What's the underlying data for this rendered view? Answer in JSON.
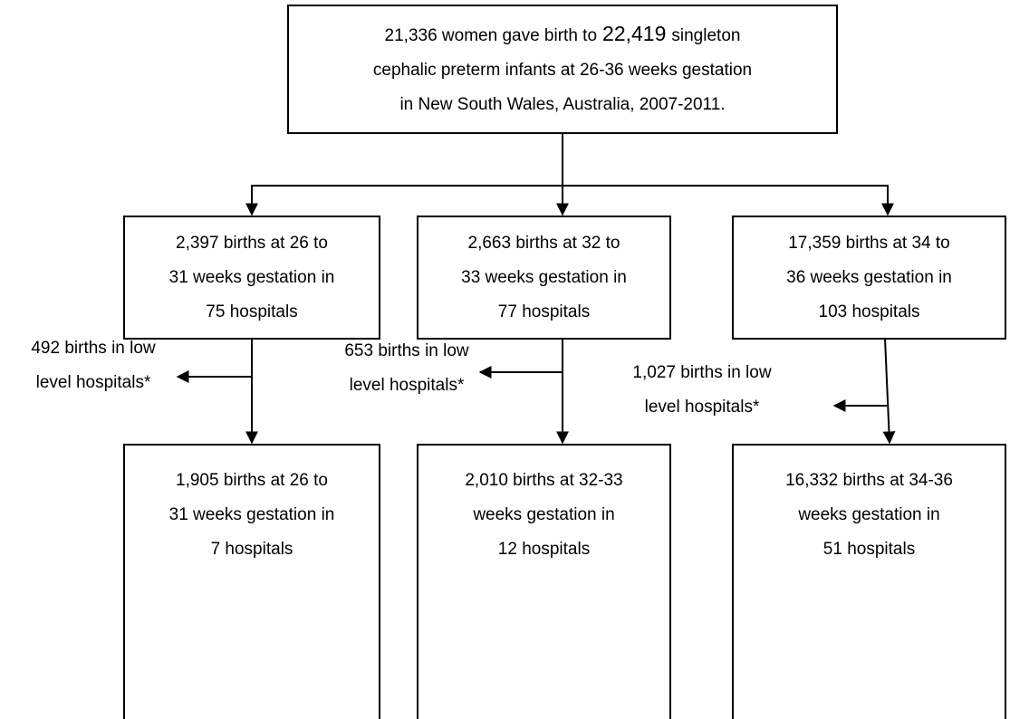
{
  "top": {
    "first_line": {
      "start": "21,336 women gave birth to",
      "highlight": "22,419",
      "end": "singleton"
    },
    "lines": [
      "cephalic preterm infants at 26-36 weeks gestation",
      "in New South Wales, Australia, 2007-2011."
    ]
  },
  "groups": [
    {
      "box": [
        "2,397 births at 26 to",
        "31 weeks gestation in",
        "75 hospitals"
      ],
      "excluded": [
        "492 births in low",
        "level hospitals*"
      ],
      "result": [
        "1,905 births at 26 to",
        "31 weeks gestation in",
        "7 hospitals"
      ]
    },
    {
      "box": [
        "2,663 births at 32 to",
        "33 weeks gestation in",
        "77 hospitals"
      ],
      "excluded": [
        "653 births in low",
        "level hospitals*"
      ],
      "result": [
        "2,010 births at 32-33",
        "weeks gestation in",
        "12 hospitals"
      ]
    },
    {
      "box": [
        "17,359 births at 34 to",
        "36 weeks gestation in",
        "103 hospitals"
      ],
      "excluded": [
        "1,027 births in low",
        "level hospitals*"
      ],
      "result": [
        "16,332 births at 34-36",
        "weeks gestation in",
        "51 hospitals"
      ]
    }
  ]
}
